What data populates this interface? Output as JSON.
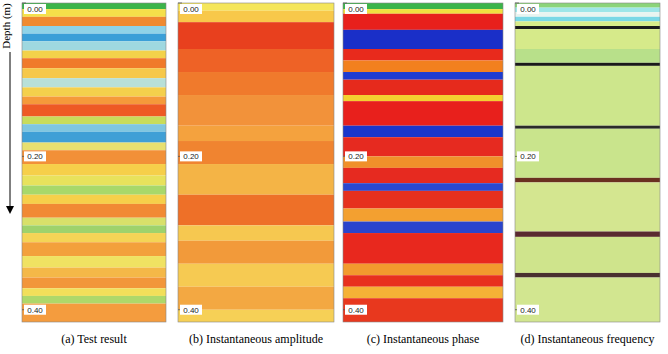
{
  "chart_data": [
    {
      "type": "heatmap",
      "title": "(a) Test result",
      "ylabel": "Depth (m)",
      "ylim": [
        0,
        0.416
      ],
      "yticks": [
        {
          "value": 0,
          "label": "0.00"
        },
        {
          "value": 0.2,
          "label": "0.20"
        },
        {
          "value": 0.4,
          "label": "0.40"
        }
      ],
      "y": [
        0,
        0.008,
        0.018,
        0.03,
        0.04,
        0.05,
        0.062,
        0.072,
        0.085,
        0.098,
        0.11,
        0.122,
        0.132,
        0.148,
        0.158,
        0.168,
        0.182,
        0.192,
        0.21,
        0.225,
        0.238,
        0.25,
        0.262,
        0.28,
        0.29,
        0.3,
        0.312,
        0.33,
        0.345,
        0.358,
        0.372,
        0.382,
        0.392
      ],
      "colors": [
        "#3cb44a",
        "#f5e04a",
        "#f08a30",
        "#8fd3e8",
        "#3a9fd8",
        "#9ed8e0",
        "#f3d24a",
        "#f07a2a",
        "#f6c84a",
        "#b8e0d8",
        "#f4d04c",
        "#f59a3a",
        "#ee5a24",
        "#c8dc5a",
        "#7fc6e0",
        "#3f9fd6",
        "#e8e070",
        "#f29038",
        "#f6cf4a",
        "#e8e25c",
        "#a8d86a",
        "#f6d04a",
        "#f18a34",
        "#d8e06a",
        "#9ed26c",
        "#f4d456",
        "#f3a03c",
        "#f0e262",
        "#f4b848",
        "#f2963a",
        "#f2df5a",
        "#aed86a",
        "#f49c3e"
      ]
    },
    {
      "type": "heatmap",
      "title": "(b) Instantaneous amplitude",
      "ylim": [
        0,
        0.416
      ],
      "yticks": [
        {
          "value": 0,
          "label": "0.00"
        },
        {
          "value": 0.2,
          "label": "0.20"
        },
        {
          "value": 0.4,
          "label": "0.40"
        }
      ],
      "y": [
        0,
        0.01,
        0.025,
        0.06,
        0.09,
        0.12,
        0.16,
        0.18,
        0.21,
        0.25,
        0.29,
        0.31,
        0.34,
        0.37,
        0.4
      ],
      "colors": [
        "#f5e65a",
        "#f8c84a",
        "#e8401e",
        "#ee6226",
        "#f07a2c",
        "#f2923a",
        "#f4a23e",
        "#f08430",
        "#f4b446",
        "#ee7028",
        "#f6c850",
        "#f29a3a",
        "#f6ca52",
        "#f3a842",
        "#f6d056"
      ]
    },
    {
      "type": "heatmap",
      "title": "(c) Instantaneous phase",
      "ylim": [
        0,
        0.416
      ],
      "yticks": [
        {
          "value": 0,
          "label": "0.00"
        },
        {
          "value": 0.2,
          "label": "0.20"
        },
        {
          "value": 0.4,
          "label": "0.40"
        }
      ],
      "y": [
        0,
        0.008,
        0.014,
        0.035,
        0.06,
        0.075,
        0.09,
        0.1,
        0.12,
        0.128,
        0.16,
        0.175,
        0.2,
        0.215,
        0.235,
        0.245,
        0.268,
        0.285,
        0.3,
        0.34,
        0.355,
        0.37,
        0.385
      ],
      "colors": [
        "#3cb44a",
        "#f0e040",
        "#e8201c",
        "#1a2fc8",
        "#e82a1c",
        "#f2801e",
        "#1e3cd0",
        "#e62a1c",
        "#f4d030",
        "#e8201c",
        "#1a36cc",
        "#e62a20",
        "#f0902a",
        "#e62a20",
        "#2a48d0",
        "#e6301e",
        "#f3a030",
        "#2a44cc",
        "#e8281e",
        "#f29a2e",
        "#e8301e",
        "#f5b236",
        "#e8381e"
      ]
    },
    {
      "type": "heatmap",
      "title": "(d) Instantaneous frequency",
      "ylim": [
        0,
        0.416
      ],
      "yticks": [
        {
          "value": 0,
          "label": "0.00"
        },
        {
          "value": 0.2,
          "label": "0.20"
        },
        {
          "value": 0.4,
          "label": "0.40"
        }
      ],
      "y": [
        0,
        0.006,
        0.012,
        0.018,
        0.024,
        0.03,
        0.034,
        0.06,
        0.078,
        0.082,
        0.16,
        0.164,
        0.228,
        0.234,
        0.298,
        0.305,
        0.352,
        0.358
      ],
      "colors": [
        "#8cd47a",
        "#9ee6e8",
        "#e8f4f0",
        "#7ad8e6",
        "#d8ec8a",
        "#1a1a1a",
        "#d6ea8a",
        "#b8e08a",
        "#1a1a1a",
        "#cde68c",
        "#2a2a2a",
        "#c9e48c",
        "#6a3020",
        "#d4e690",
        "#5a2a30",
        "#cfe48c",
        "#4a3030",
        "#d2e690"
      ]
    }
  ]
}
